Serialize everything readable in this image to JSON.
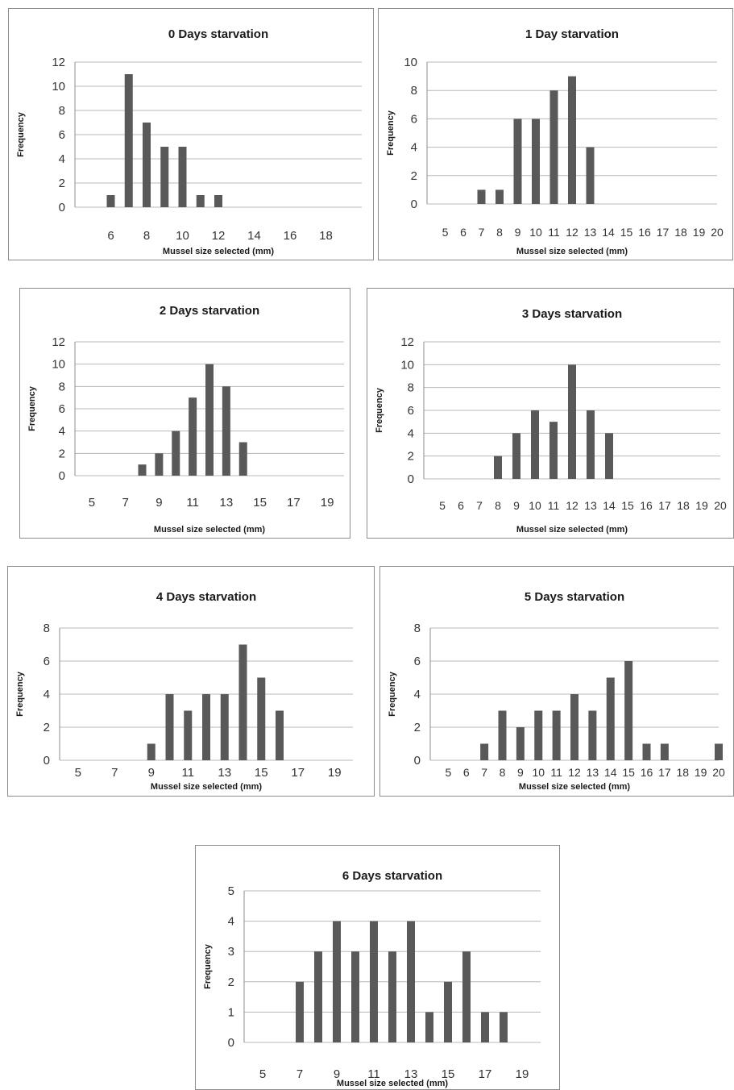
{
  "colors": {
    "bar": "#595959",
    "grid": "#b8b8b8",
    "axis": "#8c8c8c"
  },
  "chart_data": [
    {
      "type": "bar",
      "title": "0 Days starvation",
      "xlabel": "Mussel size selected (mm)",
      "ylabel": "Frequency",
      "ylim": [
        0,
        12
      ],
      "yticks": [
        0,
        2,
        4,
        6,
        8,
        10,
        12
      ],
      "xlim": [
        4,
        20
      ],
      "xtick_labels": [
        "6",
        "8",
        "10",
        "12",
        "14",
        "16",
        "18"
      ],
      "xtick_positions": [
        6,
        8,
        10,
        12,
        14,
        16,
        18
      ],
      "x": [
        6,
        7,
        8,
        9,
        10,
        11,
        12
      ],
      "values": [
        1,
        11,
        7,
        5,
        5,
        1,
        1
      ]
    },
    {
      "type": "bar",
      "title": "1 Day starvation",
      "xlabel": "Mussel size selected (mm)",
      "ylabel": "Frequency",
      "ylim": [
        0,
        10
      ],
      "yticks": [
        0,
        2,
        4,
        6,
        8,
        10
      ],
      "xlim": [
        4,
        20
      ],
      "xtick_labels": [
        "5",
        "6",
        "7",
        "8",
        "9",
        "10",
        "11",
        "12",
        "13",
        "14",
        "15",
        "16",
        "17",
        "18",
        "19",
        "20"
      ],
      "xtick_positions": [
        5,
        6,
        7,
        8,
        9,
        10,
        11,
        12,
        13,
        14,
        15,
        16,
        17,
        18,
        19,
        20
      ],
      "x": [
        7,
        8,
        9,
        10,
        11,
        12,
        13
      ],
      "values": [
        1,
        1,
        6,
        6,
        8,
        9,
        4
      ]
    },
    {
      "type": "bar",
      "title": "2 Days starvation",
      "xlabel": "Mussel size selected (mm)",
      "ylabel": "Frequency",
      "ylim": [
        0,
        12
      ],
      "yticks": [
        0,
        2,
        4,
        6,
        8,
        10,
        12
      ],
      "xlim": [
        4,
        20
      ],
      "xtick_labels": [
        "5",
        "7",
        "9",
        "11",
        "13",
        "15",
        "17",
        "19"
      ],
      "xtick_positions": [
        5,
        7,
        9,
        11,
        13,
        15,
        17,
        19
      ],
      "x": [
        8,
        9,
        10,
        11,
        12,
        13,
        14
      ],
      "values": [
        1,
        2,
        4,
        7,
        10,
        8,
        3
      ]
    },
    {
      "type": "bar",
      "title": "3 Days starvation",
      "xlabel": "Mussel size selected (mm)",
      "ylabel": "Frequency",
      "ylim": [
        0,
        12
      ],
      "yticks": [
        0,
        2,
        4,
        6,
        8,
        10,
        12
      ],
      "xlim": [
        4,
        20
      ],
      "xtick_labels": [
        "5",
        "6",
        "7",
        "8",
        "9",
        "10",
        "11",
        "12",
        "13",
        "14",
        "15",
        "16",
        "17",
        "18",
        "19",
        "20"
      ],
      "xtick_positions": [
        5,
        6,
        7,
        8,
        9,
        10,
        11,
        12,
        13,
        14,
        15,
        16,
        17,
        18,
        19,
        20
      ],
      "x": [
        8,
        9,
        10,
        11,
        12,
        13,
        14
      ],
      "values": [
        2,
        4,
        6,
        5,
        10,
        6,
        4
      ]
    },
    {
      "type": "bar",
      "title": "4 Days starvation",
      "xlabel": "Mussel size selected (mm)",
      "ylabel": "Frequency",
      "ylim": [
        0,
        8
      ],
      "yticks": [
        0,
        2,
        4,
        6,
        8
      ],
      "xlim": [
        4,
        20
      ],
      "xtick_labels": [
        "5",
        "7",
        "9",
        "11",
        "13",
        "15",
        "17",
        "19"
      ],
      "xtick_positions": [
        5,
        7,
        9,
        11,
        13,
        15,
        17,
        19
      ],
      "x": [
        9,
        10,
        11,
        12,
        13,
        14,
        15,
        16
      ],
      "values": [
        1,
        4,
        3,
        4,
        4,
        7,
        5,
        3
      ]
    },
    {
      "type": "bar",
      "title": "5 Days starvation",
      "xlabel": "Mussel size selected (mm)",
      "ylabel": "Frequency",
      "ylim": [
        0,
        8
      ],
      "yticks": [
        0,
        2,
        4,
        6,
        8
      ],
      "xlim": [
        4,
        20
      ],
      "xtick_labels": [
        "5",
        "6",
        "7",
        "8",
        "9",
        "10",
        "11",
        "12",
        "13",
        "14",
        "15",
        "16",
        "17",
        "18",
        "19",
        "20"
      ],
      "xtick_positions": [
        5,
        6,
        7,
        8,
        9,
        10,
        11,
        12,
        13,
        14,
        15,
        16,
        17,
        18,
        19,
        20
      ],
      "x": [
        7,
        8,
        9,
        10,
        11,
        12,
        13,
        14,
        15,
        16,
        17,
        20
      ],
      "values": [
        1,
        3,
        2,
        3,
        3,
        4,
        3,
        5,
        6,
        1,
        1,
        1
      ]
    },
    {
      "type": "bar",
      "title": "6 Days starvation",
      "xlabel": "Mussel size selected (mm)",
      "ylabel": "Frequency",
      "ylim": [
        0,
        5
      ],
      "yticks": [
        0,
        1,
        2,
        3,
        4,
        5
      ],
      "xlim": [
        4,
        20
      ],
      "xtick_labels": [
        "5",
        "7",
        "9",
        "11",
        "13",
        "15",
        "17",
        "19"
      ],
      "xtick_positions": [
        5,
        7,
        9,
        11,
        13,
        15,
        17,
        19
      ],
      "x": [
        7,
        8,
        9,
        10,
        11,
        12,
        13,
        14,
        15,
        16,
        17,
        18
      ],
      "values": [
        2,
        3,
        4,
        3,
        4,
        3,
        4,
        1,
        2,
        3,
        1,
        1
      ]
    }
  ]
}
